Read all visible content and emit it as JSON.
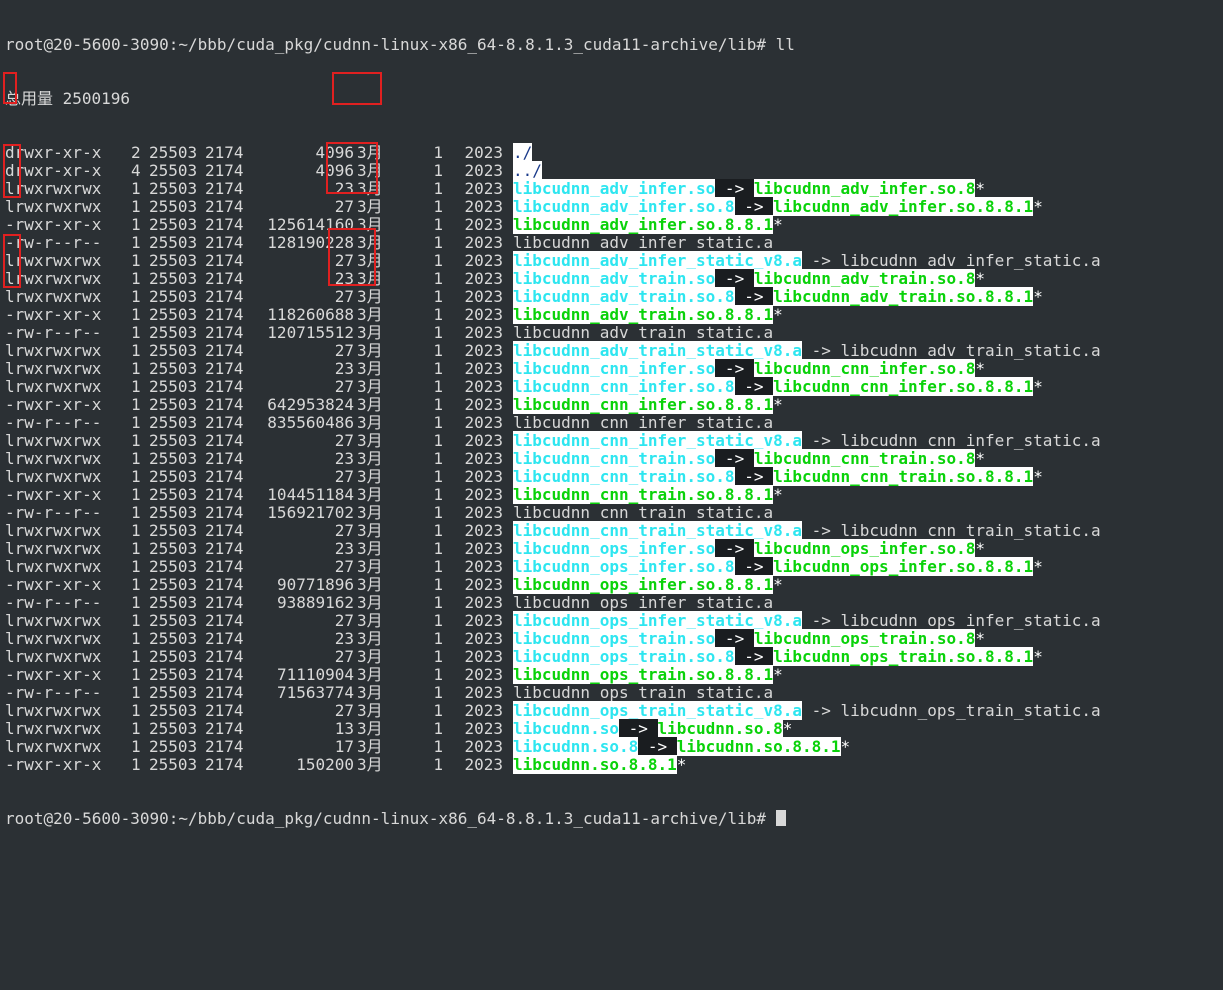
{
  "prompt_top": "root@20-5600-3090:~/bbb/cuda_pkg/cudnn-linux-x86_64-8.8.1.3_cuda11-archive/lib# ll",
  "total_line": "总用量 2500196",
  "prompt_bottom": "root@20-5600-3090:~/bbb/cuda_pkg/cudnn-linux-x86_64-8.8.1.3_cuda11-archive/lib# ",
  "colors": {
    "background": "#2b3034",
    "symlink_name": "#2ee6f0",
    "executable_name": "#0ad20a",
    "highlight_box": "#e02020"
  },
  "entries": [
    {
      "perm": "drwxr-xr-x",
      "links": "2",
      "uid": "25503",
      "gid": "2174",
      "size": "4096",
      "month": "3月",
      "day": "1",
      "year": "2023",
      "name": "./",
      "kind": "dir"
    },
    {
      "perm": "drwxr-xr-x",
      "links": "4",
      "uid": "25503",
      "gid": "2174",
      "size": "4096",
      "month": "3月",
      "day": "1",
      "year": "2023",
      "name": "../",
      "kind": "dir"
    },
    {
      "perm": "lrwxrwxrwx",
      "links": "1",
      "uid": "25503",
      "gid": "2174",
      "size": "23",
      "month": "3月",
      "day": "1",
      "year": "2023",
      "name": "libcudnn_adv_infer.so",
      "kind": "link",
      "target": "libcudnn_adv_infer.so.8",
      "target_kind": "exe",
      "arrow": "dark"
    },
    {
      "perm": "lrwxrwxrwx",
      "links": "1",
      "uid": "25503",
      "gid": "2174",
      "size": "27",
      "month": "3月",
      "day": "1",
      "year": "2023",
      "name": "libcudnn_adv_infer.so.8",
      "kind": "link",
      "target": "libcudnn_adv_infer.so.8.8.1",
      "target_kind": "exe",
      "arrow": "dark"
    },
    {
      "perm": "-rwxr-xr-x",
      "links": "1",
      "uid": "25503",
      "gid": "2174",
      "size": "125614160",
      "month": "3月",
      "day": "1",
      "year": "2023",
      "name": "libcudnn_adv_infer.so.8.8.1",
      "kind": "exe"
    },
    {
      "perm": "-rw-r--r--",
      "links": "1",
      "uid": "25503",
      "gid": "2174",
      "size": "128190228",
      "month": "3月",
      "day": "1",
      "year": "2023",
      "name": "libcudnn_adv_infer_static.a",
      "kind": "plain"
    },
    {
      "perm": "lrwxrwxrwx",
      "links": "1",
      "uid": "25503",
      "gid": "2174",
      "size": "27",
      "month": "3月",
      "day": "1",
      "year": "2023",
      "name": "libcudnn_adv_infer_static_v8.a",
      "kind": "link",
      "target": "libcudnn_adv_infer_static.a",
      "target_kind": "plain",
      "arrow": "plain"
    },
    {
      "perm": "lrwxrwxrwx",
      "links": "1",
      "uid": "25503",
      "gid": "2174",
      "size": "23",
      "month": "3月",
      "day": "1",
      "year": "2023",
      "name": "libcudnn_adv_train.so",
      "kind": "link",
      "target": "libcudnn_adv_train.so.8",
      "target_kind": "exe",
      "arrow": "dark"
    },
    {
      "perm": "lrwxrwxrwx",
      "links": "1",
      "uid": "25503",
      "gid": "2174",
      "size": "27",
      "month": "3月",
      "day": "1",
      "year": "2023",
      "name": "libcudnn_adv_train.so.8",
      "kind": "link",
      "target": "libcudnn_adv_train.so.8.8.1",
      "target_kind": "exe",
      "arrow": "dark"
    },
    {
      "perm": "-rwxr-xr-x",
      "links": "1",
      "uid": "25503",
      "gid": "2174",
      "size": "118260688",
      "month": "3月",
      "day": "1",
      "year": "2023",
      "name": "libcudnn_adv_train.so.8.8.1",
      "kind": "exe"
    },
    {
      "perm": "-rw-r--r--",
      "links": "1",
      "uid": "25503",
      "gid": "2174",
      "size": "120715512",
      "month": "3月",
      "day": "1",
      "year": "2023",
      "name": "libcudnn_adv_train_static.a",
      "kind": "plain"
    },
    {
      "perm": "lrwxrwxrwx",
      "links": "1",
      "uid": "25503",
      "gid": "2174",
      "size": "27",
      "month": "3月",
      "day": "1",
      "year": "2023",
      "name": "libcudnn_adv_train_static_v8.a",
      "kind": "link",
      "target": "libcudnn_adv_train_static.a",
      "target_kind": "plain",
      "arrow": "plain"
    },
    {
      "perm": "lrwxrwxrwx",
      "links": "1",
      "uid": "25503",
      "gid": "2174",
      "size": "23",
      "month": "3月",
      "day": "1",
      "year": "2023",
      "name": "libcudnn_cnn_infer.so",
      "kind": "link",
      "target": "libcudnn_cnn_infer.so.8",
      "target_kind": "exe",
      "arrow": "dark"
    },
    {
      "perm": "lrwxrwxrwx",
      "links": "1",
      "uid": "25503",
      "gid": "2174",
      "size": "27",
      "month": "3月",
      "day": "1",
      "year": "2023",
      "name": "libcudnn_cnn_infer.so.8",
      "kind": "link",
      "target": "libcudnn_cnn_infer.so.8.8.1",
      "target_kind": "exe",
      "arrow": "dark"
    },
    {
      "perm": "-rwxr-xr-x",
      "links": "1",
      "uid": "25503",
      "gid": "2174",
      "size": "642953824",
      "month": "3月",
      "day": "1",
      "year": "2023",
      "name": "libcudnn_cnn_infer.so.8.8.1",
      "kind": "exe"
    },
    {
      "perm": "-rw-r--r--",
      "links": "1",
      "uid": "25503",
      "gid": "2174",
      "size": "835560486",
      "month": "3月",
      "day": "1",
      "year": "2023",
      "name": "libcudnn_cnn_infer_static.a",
      "kind": "plain"
    },
    {
      "perm": "lrwxrwxrwx",
      "links": "1",
      "uid": "25503",
      "gid": "2174",
      "size": "27",
      "month": "3月",
      "day": "1",
      "year": "2023",
      "name": "libcudnn_cnn_infer_static_v8.a",
      "kind": "link",
      "target": "libcudnn_cnn_infer_static.a",
      "target_kind": "plain",
      "arrow": "plain"
    },
    {
      "perm": "lrwxrwxrwx",
      "links": "1",
      "uid": "25503",
      "gid": "2174",
      "size": "23",
      "month": "3月",
      "day": "1",
      "year": "2023",
      "name": "libcudnn_cnn_train.so",
      "kind": "link",
      "target": "libcudnn_cnn_train.so.8",
      "target_kind": "exe",
      "arrow": "dark"
    },
    {
      "perm": "lrwxrwxrwx",
      "links": "1",
      "uid": "25503",
      "gid": "2174",
      "size": "27",
      "month": "3月",
      "day": "1",
      "year": "2023",
      "name": "libcudnn_cnn_train.so.8",
      "kind": "link",
      "target": "libcudnn_cnn_train.so.8.8.1",
      "target_kind": "exe",
      "arrow": "dark"
    },
    {
      "perm": "-rwxr-xr-x",
      "links": "1",
      "uid": "25503",
      "gid": "2174",
      "size": "104451184",
      "month": "3月",
      "day": "1",
      "year": "2023",
      "name": "libcudnn_cnn_train.so.8.8.1",
      "kind": "exe"
    },
    {
      "perm": "-rw-r--r--",
      "links": "1",
      "uid": "25503",
      "gid": "2174",
      "size": "156921702",
      "month": "3月",
      "day": "1",
      "year": "2023",
      "name": "libcudnn_cnn_train_static.a",
      "kind": "plain"
    },
    {
      "perm": "lrwxrwxrwx",
      "links": "1",
      "uid": "25503",
      "gid": "2174",
      "size": "27",
      "month": "3月",
      "day": "1",
      "year": "2023",
      "name": "libcudnn_cnn_train_static_v8.a",
      "kind": "link",
      "target": "libcudnn_cnn_train_static.a",
      "target_kind": "plain",
      "arrow": "plain"
    },
    {
      "perm": "lrwxrwxrwx",
      "links": "1",
      "uid": "25503",
      "gid": "2174",
      "size": "23",
      "month": "3月",
      "day": "1",
      "year": "2023",
      "name": "libcudnn_ops_infer.so",
      "kind": "link",
      "target": "libcudnn_ops_infer.so.8",
      "target_kind": "exe",
      "arrow": "dark"
    },
    {
      "perm": "lrwxrwxrwx",
      "links": "1",
      "uid": "25503",
      "gid": "2174",
      "size": "27",
      "month": "3月",
      "day": "1",
      "year": "2023",
      "name": "libcudnn_ops_infer.so.8",
      "kind": "link",
      "target": "libcudnn_ops_infer.so.8.8.1",
      "target_kind": "exe",
      "arrow": "dark"
    },
    {
      "perm": "-rwxr-xr-x",
      "links": "1",
      "uid": "25503",
      "gid": "2174",
      "size": "90771896",
      "month": "3月",
      "day": "1",
      "year": "2023",
      "name": "libcudnn_ops_infer.so.8.8.1",
      "kind": "exe"
    },
    {
      "perm": "-rw-r--r--",
      "links": "1",
      "uid": "25503",
      "gid": "2174",
      "size": "93889162",
      "month": "3月",
      "day": "1",
      "year": "2023",
      "name": "libcudnn_ops_infer_static.a",
      "kind": "plain"
    },
    {
      "perm": "lrwxrwxrwx",
      "links": "1",
      "uid": "25503",
      "gid": "2174",
      "size": "27",
      "month": "3月",
      "day": "1",
      "year": "2023",
      "name": "libcudnn_ops_infer_static_v8.a",
      "kind": "link",
      "target": "libcudnn_ops_infer_static.a",
      "target_kind": "plain",
      "arrow": "plain"
    },
    {
      "perm": "lrwxrwxrwx",
      "links": "1",
      "uid": "25503",
      "gid": "2174",
      "size": "23",
      "month": "3月",
      "day": "1",
      "year": "2023",
      "name": "libcudnn_ops_train.so",
      "kind": "link",
      "target": "libcudnn_ops_train.so.8",
      "target_kind": "exe",
      "arrow": "dark"
    },
    {
      "perm": "lrwxrwxrwx",
      "links": "1",
      "uid": "25503",
      "gid": "2174",
      "size": "27",
      "month": "3月",
      "day": "1",
      "year": "2023",
      "name": "libcudnn_ops_train.so.8",
      "kind": "link",
      "target": "libcudnn_ops_train.so.8.8.1",
      "target_kind": "exe",
      "arrow": "dark"
    },
    {
      "perm": "-rwxr-xr-x",
      "links": "1",
      "uid": "25503",
      "gid": "2174",
      "size": "71110904",
      "month": "3月",
      "day": "1",
      "year": "2023",
      "name": "libcudnn_ops_train.so.8.8.1",
      "kind": "exe"
    },
    {
      "perm": "-rw-r--r--",
      "links": "1",
      "uid": "25503",
      "gid": "2174",
      "size": "71563774",
      "month": "3月",
      "day": "1",
      "year": "2023",
      "name": "libcudnn_ops_train_static.a",
      "kind": "plain"
    },
    {
      "perm": "lrwxrwxrwx",
      "links": "1",
      "uid": "25503",
      "gid": "2174",
      "size": "27",
      "month": "3月",
      "day": "1",
      "year": "2023",
      "name": "libcudnn_ops_train_static_v8.a",
      "kind": "link",
      "target": "libcudnn_ops_train_static.a",
      "target_kind": "plain",
      "arrow": "plain"
    },
    {
      "perm": "lrwxrwxrwx",
      "links": "1",
      "uid": "25503",
      "gid": "2174",
      "size": "13",
      "month": "3月",
      "day": "1",
      "year": "2023",
      "name": "libcudnn.so",
      "kind": "link",
      "target": "libcudnn.so.8",
      "target_kind": "exe",
      "arrow": "dark"
    },
    {
      "perm": "lrwxrwxrwx",
      "links": "1",
      "uid": "25503",
      "gid": "2174",
      "size": "17",
      "month": "3月",
      "day": "1",
      "year": "2023",
      "name": "libcudnn.so.8",
      "kind": "link",
      "target": "libcudnn.so.8.8.1",
      "target_kind": "exe",
      "arrow": "dark"
    },
    {
      "perm": "-rwxr-xr-x",
      "links": "1",
      "uid": "25503",
      "gid": "2174",
      "size": "150200",
      "month": "3月",
      "day": "1",
      "year": "2023",
      "name": "libcudnn.so.8.8.1",
      "kind": "exe"
    }
  ]
}
